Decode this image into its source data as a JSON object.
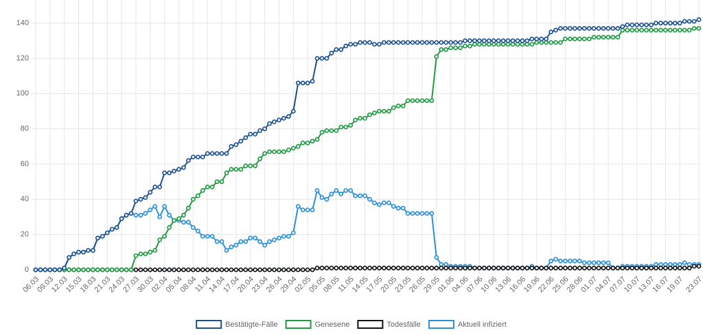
{
  "chart_data": {
    "type": "line",
    "categories": [
      "06.03",
      null,
      null,
      "09.03",
      null,
      null,
      "12.03",
      null,
      null,
      "15.03",
      null,
      null,
      "18.03",
      null,
      null,
      "21.03",
      null,
      null,
      "24.03",
      null,
      null,
      "27.03",
      null,
      null,
      "30.03",
      null,
      null,
      "02.04",
      null,
      null,
      "05.04",
      null,
      null,
      "08.04",
      null,
      null,
      "11.04",
      null,
      null,
      "14.04",
      null,
      null,
      "17.04",
      null,
      null,
      "20.04",
      null,
      null,
      "23.04",
      null,
      null,
      "26.04",
      null,
      null,
      "29.04",
      null,
      null,
      "02.05",
      null,
      null,
      "05.05",
      null,
      null,
      "08.05",
      null,
      null,
      "11.05",
      null,
      null,
      "14.05",
      null,
      null,
      "17.05",
      null,
      null,
      "20.05",
      null,
      null,
      "23.05",
      null,
      null,
      "26.05",
      null,
      null,
      "29.05",
      null,
      null,
      "01.06",
      null,
      null,
      "04.06",
      null,
      null,
      "07.06",
      null,
      null,
      "10.06",
      null,
      null,
      "13.06",
      null,
      null,
      "16.06",
      null,
      null,
      "19.06",
      null,
      null,
      "22.06",
      null,
      null,
      "25.06",
      null,
      null,
      "28.06",
      null,
      null,
      "01.07",
      null,
      null,
      "04.07",
      null,
      null,
      "07.07",
      null,
      null,
      "10.07",
      null,
      null,
      "13.07",
      null,
      null,
      "16.07",
      null,
      null,
      "19.07",
      null,
      null,
      null,
      "23.07"
    ],
    "series": [
      {
        "name": "Bestätigte-Fälle",
        "color": "#1b4f8e",
        "values": [
          0,
          0,
          0,
          0,
          0,
          0,
          1,
          7,
          9,
          10,
          10,
          11,
          11,
          18,
          19,
          21,
          23,
          24,
          29,
          31,
          32,
          39,
          40,
          41,
          44,
          47,
          47,
          55,
          55,
          56,
          57,
          58,
          62,
          64,
          64,
          64,
          66,
          66,
          66,
          66,
          66,
          70,
          71,
          73,
          75,
          77,
          77,
          79,
          80,
          83,
          84,
          85,
          86,
          87,
          90,
          106,
          106,
          106,
          107,
          120,
          120,
          120,
          123,
          125,
          125,
          127,
          128,
          128,
          129,
          129,
          129,
          128,
          128,
          129,
          129,
          129,
          129,
          129,
          129,
          129,
          129,
          129,
          129,
          129,
          129,
          129,
          129,
          129,
          129,
          129,
          130,
          130,
          130,
          130,
          130,
          130,
          130,
          130,
          130,
          130,
          130,
          130,
          130,
          130,
          131,
          131,
          131,
          131,
          135,
          136,
          137,
          137,
          137,
          137,
          137,
          137,
          137,
          137,
          137,
          137,
          137,
          137,
          137,
          138,
          139,
          139,
          139,
          139,
          139,
          139,
          140,
          140,
          140,
          140,
          140,
          140,
          141,
          141,
          141,
          142
        ]
      },
      {
        "name": "Genesene",
        "color": "#1f9a3e",
        "values": [
          0,
          0,
          0,
          0,
          0,
          0,
          0,
          0,
          0,
          0,
          0,
          0,
          0,
          0,
          0,
          0,
          0,
          0,
          0,
          0,
          0,
          8,
          9,
          9,
          10,
          11,
          17,
          19,
          24,
          28,
          29,
          31,
          35,
          40,
          42,
          45,
          47,
          47,
          50,
          50,
          55,
          57,
          57,
          57,
          59,
          59,
          59,
          63,
          66,
          67,
          67,
          67,
          67,
          68,
          69,
          70,
          72,
          72,
          73,
          74,
          78,
          79,
          79,
          79,
          81,
          81,
          82,
          85,
          86,
          86,
          88,
          89,
          90,
          90,
          90,
          92,
          93,
          93,
          96,
          96,
          96,
          96,
          96,
          96,
          121,
          125,
          125,
          126,
          126,
          126,
          127,
          127,
          128,
          128,
          128,
          128,
          128,
          128,
          128,
          128,
          128,
          128,
          128,
          128,
          128,
          129,
          129,
          129,
          129,
          129,
          129,
          131,
          131,
          131,
          131,
          131,
          131,
          132,
          132,
          132,
          132,
          132,
          132,
          136,
          136,
          136,
          136,
          136,
          136,
          136,
          136,
          136,
          136,
          136,
          136,
          136,
          136,
          136,
          137,
          137
        ]
      },
      {
        "name": "Todesfälle",
        "color": "#111111",
        "values": [
          0,
          0,
          0,
          0,
          0,
          0,
          0,
          0,
          0,
          0,
          0,
          0,
          0,
          0,
          0,
          0,
          0,
          0,
          0,
          0,
          0,
          0,
          0,
          0,
          0,
          0,
          0,
          0,
          0,
          0,
          0,
          0,
          0,
          0,
          0,
          0,
          0,
          0,
          0,
          0,
          0,
          0,
          0,
          0,
          0,
          0,
          0,
          0,
          0,
          0,
          0,
          0,
          0,
          0,
          0,
          0,
          0,
          0,
          0,
          1,
          1,
          1,
          1,
          1,
          1,
          1,
          1,
          1,
          1,
          1,
          1,
          1,
          1,
          1,
          1,
          1,
          1,
          1,
          1,
          1,
          1,
          1,
          1,
          1,
          1,
          1,
          1,
          1,
          1,
          1,
          1,
          1,
          1,
          1,
          1,
          1,
          1,
          1,
          1,
          1,
          1,
          1,
          1,
          1,
          1,
          1,
          1,
          1,
          1,
          1,
          1,
          1,
          1,
          1,
          1,
          1,
          1,
          1,
          1,
          1,
          1,
          1,
          1,
          1,
          1,
          1,
          1,
          1,
          1,
          1,
          1,
          1,
          1,
          1,
          1,
          1,
          1,
          1,
          2,
          2
        ]
      },
      {
        "name": "Aktuell infiziert",
        "color": "#2a8fd9",
        "values": [
          0,
          0,
          0,
          0,
          0,
          0,
          1,
          7,
          9,
          10,
          10,
          11,
          11,
          18,
          19,
          21,
          23,
          24,
          29,
          31,
          32,
          31,
          31,
          32,
          34,
          36,
          30,
          36,
          31,
          28,
          28,
          27,
          27,
          24,
          22,
          19,
          19,
          19,
          16,
          16,
          11,
          13,
          14,
          16,
          16,
          18,
          18,
          16,
          14,
          16,
          17,
          18,
          19,
          19,
          21,
          36,
          34,
          34,
          34,
          45,
          41,
          40,
          43,
          45,
          43,
          45,
          45,
          42,
          42,
          42,
          40,
          38,
          37,
          38,
          38,
          36,
          35,
          35,
          32,
          32,
          32,
          32,
          32,
          32,
          7,
          3,
          3,
          2,
          2,
          2,
          2,
          2,
          1,
          1,
          1,
          1,
          1,
          1,
          1,
          1,
          1,
          1,
          1,
          1,
          2,
          1,
          1,
          1,
          5,
          6,
          5,
          5,
          5,
          5,
          5,
          4,
          4,
          4,
          4,
          4,
          4,
          1,
          1,
          2,
          2,
          2,
          2,
          2,
          2,
          2,
          3,
          3,
          3,
          3,
          3,
          3,
          4,
          3,
          3,
          3
        ]
      }
    ],
    "ylim": [
      0,
      150
    ],
    "yticks": [
      0,
      20,
      40,
      60,
      80,
      100,
      120,
      140
    ],
    "grid": true
  }
}
